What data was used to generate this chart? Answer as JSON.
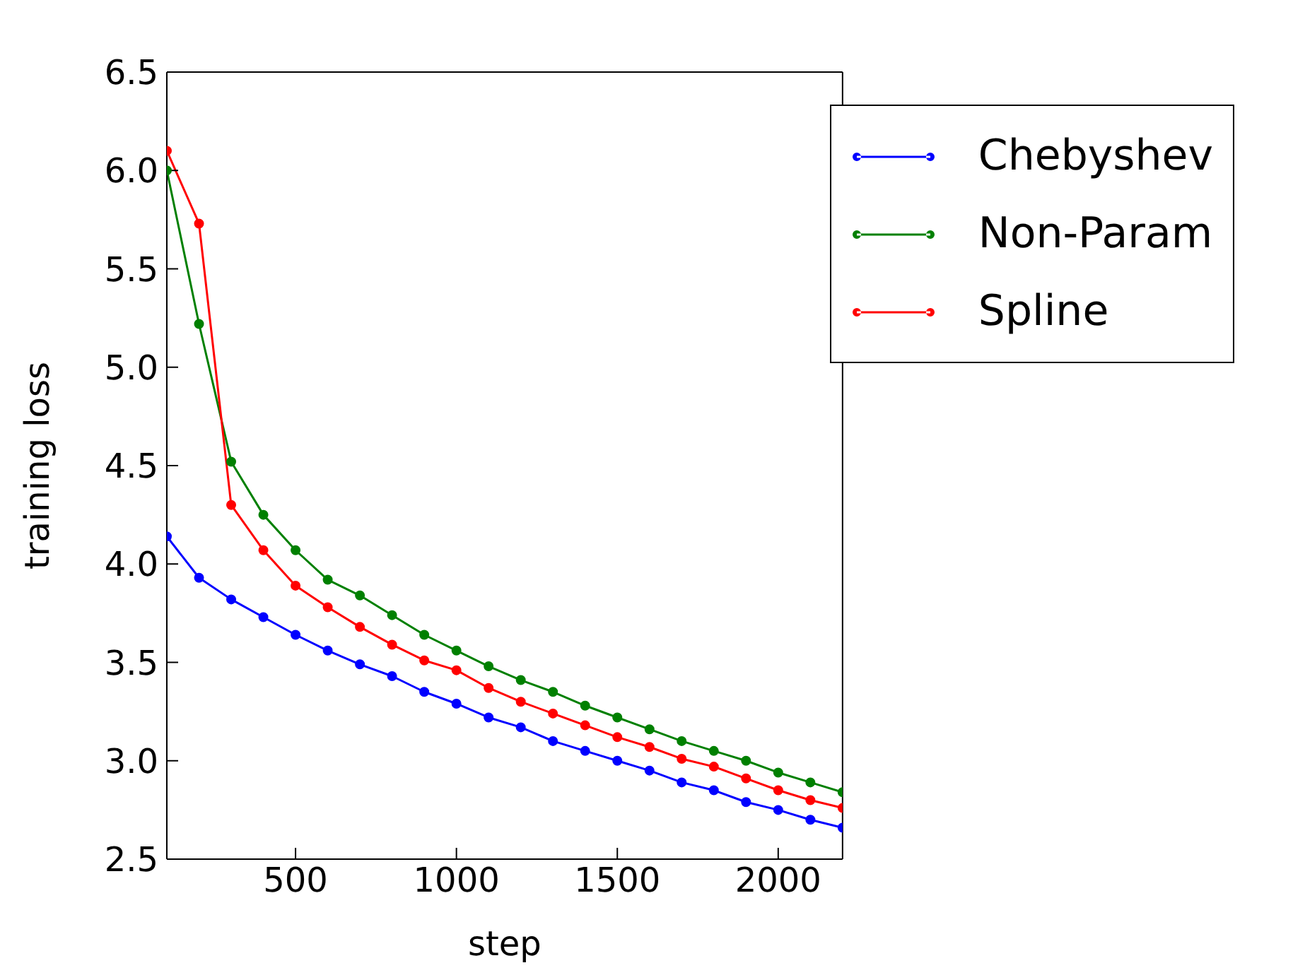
{
  "chart_data": {
    "type": "line",
    "xlabel": "step",
    "ylabel": "training loss",
    "x": [
      100,
      200,
      300,
      400,
      500,
      600,
      700,
      800,
      900,
      1000,
      1100,
      1200,
      1300,
      1400,
      1500,
      1600,
      1700,
      1800,
      1900,
      2000,
      2100,
      2200
    ],
    "series": [
      {
        "name": "Chebyshev",
        "color": "#0000ff",
        "values": [
          4.14,
          3.93,
          3.82,
          3.73,
          3.64,
          3.56,
          3.49,
          3.43,
          3.35,
          3.29,
          3.22,
          3.17,
          3.1,
          3.05,
          3.0,
          2.95,
          2.89,
          2.85,
          2.79,
          2.75,
          2.7,
          2.66
        ]
      },
      {
        "name": "Non-Param",
        "color": "#008000",
        "values": [
          6.0,
          5.22,
          4.52,
          4.25,
          4.07,
          3.92,
          3.84,
          3.74,
          3.64,
          3.56,
          3.48,
          3.41,
          3.35,
          3.28,
          3.22,
          3.16,
          3.1,
          3.05,
          3.0,
          2.94,
          2.89,
          2.84
        ]
      },
      {
        "name": "Spline",
        "color": "#ff0000",
        "values": [
          6.1,
          5.73,
          4.3,
          4.07,
          3.89,
          3.78,
          3.68,
          3.59,
          3.51,
          3.46,
          3.37,
          3.3,
          3.24,
          3.18,
          3.12,
          3.07,
          3.01,
          2.97,
          2.91,
          2.85,
          2.8,
          2.76
        ]
      }
    ],
    "xlim": [
      100,
      2200
    ],
    "xticks": [
      500,
      1000,
      1500,
      2000
    ],
    "ylim": [
      2.5,
      6.5
    ],
    "yticks": [
      2.5,
      {
        "value": 3,
        "label": "3.0"
      },
      3.5,
      {
        "value": 4,
        "label": "4.0"
      },
      4.5,
      {
        "value": 5,
        "label": "5.0"
      },
      5.5,
      {
        "value": 6,
        "label": "6.0"
      },
      6.5
    ],
    "legend": "top right",
    "marker": "circle",
    "line_style": "solid",
    "grid": false
  }
}
